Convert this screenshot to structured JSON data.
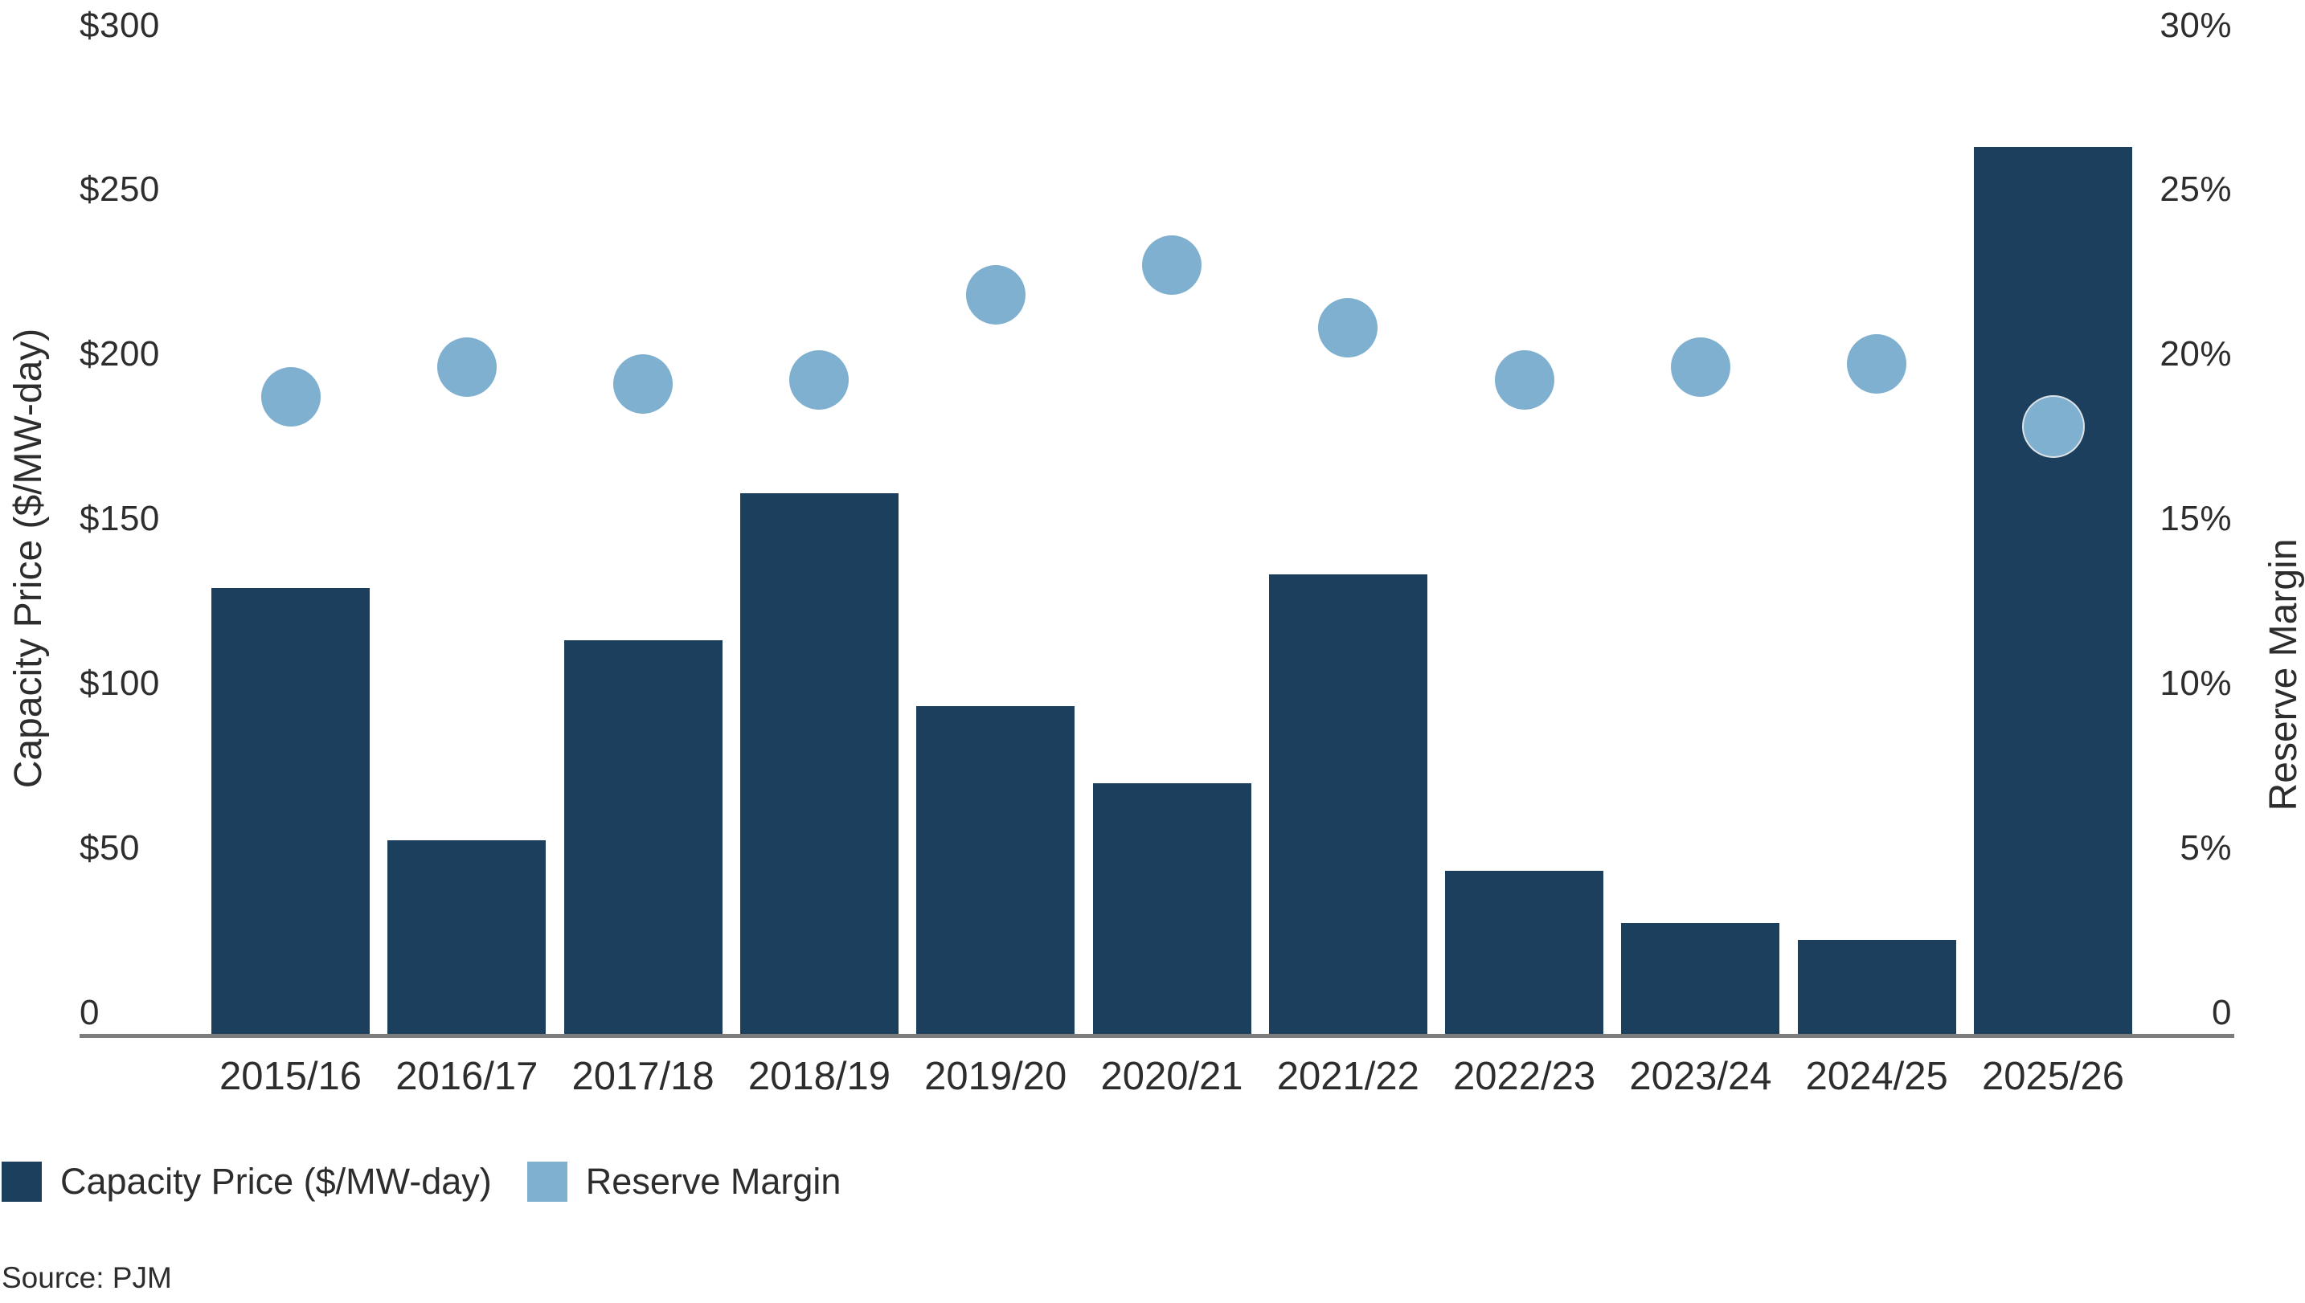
{
  "chart_data": {
    "type": "bar",
    "subtype": "combo-bar-scatter",
    "title": "",
    "categories": [
      "2015/16",
      "2016/17",
      "2017/18",
      "2018/19",
      "2019/20",
      "2020/21",
      "2021/22",
      "2022/23",
      "2023/24",
      "2024/25",
      "2025/26"
    ],
    "series": [
      {
        "name": "Capacity Price ($/MW-day)",
        "type": "bar",
        "axis": "left",
        "color": "#1C3F5E",
        "values": [
          136.0,
          59.37,
          120.0,
          164.77,
          100.0,
          76.53,
          140.0,
          50.0,
          34.13,
          28.92,
          269.92
        ]
      },
      {
        "name": "Reserve Margin",
        "type": "scatter",
        "axis": "right",
        "color": "#80B0CF",
        "unit": "%",
        "values": [
          19.4,
          20.3,
          19.8,
          19.9,
          22.5,
          23.4,
          21.5,
          19.9,
          20.3,
          20.4,
          18.5
        ]
      }
    ],
    "left_axis": {
      "label": "Capacity Price ($/MW-day)",
      "min": 0,
      "max": 300,
      "tick_values": [
        300,
        250,
        200,
        150,
        100,
        50,
        0
      ],
      "tick_labels": [
        "$300",
        "$250",
        "$200",
        "$150",
        "$100",
        "$50",
        "0"
      ]
    },
    "right_axis": {
      "label": "Reserve Margin",
      "min": 0,
      "max": 30,
      "tick_values": [
        30,
        25,
        20,
        15,
        10,
        5,
        0
      ],
      "tick_labels": [
        "30%",
        "25%",
        "20%",
        "15%",
        "10%",
        "5%",
        "0"
      ]
    },
    "legend": {
      "position": "bottom-left",
      "items": [
        {
          "label": "Capacity Price ($/MW-day)",
          "color": "#1C3F5E"
        },
        {
          "label": "Reserve Margin",
          "color": "#80B0CF"
        }
      ]
    },
    "grid": false,
    "background": "#FFFFFF",
    "axis_line_color": "#7C7C7C",
    "text_color": "#2D2D2D",
    "source": "Source: PJM"
  }
}
